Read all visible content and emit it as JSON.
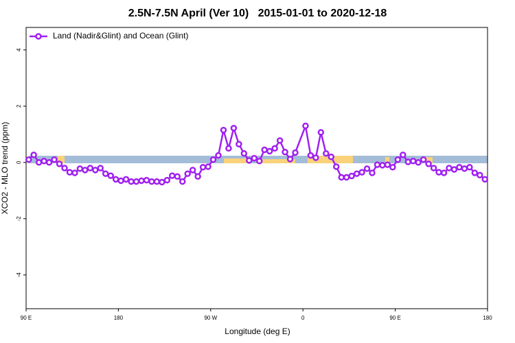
{
  "chart_data": {
    "type": "line",
    "title": "2.5N-7.5N April (Ver 10)   2015-01-01 to 2020-12-18",
    "xlabel": "Longitude (deg E)",
    "ylabel": "XCO2 - MLO trend (ppm)",
    "xlim": [
      90,
      540
    ],
    "ylim": [
      -5.2,
      4.8
    ],
    "xticks": [
      {
        "value": 90,
        "label": "90 E"
      },
      180,
      {
        "value": 270,
        "label": "90 W"
      },
      {
        "value": 360,
        "label": "0"
      },
      {
        "value": 450,
        "label": "90 E"
      },
      {
        "value": 540,
        "label": "180"
      }
    ],
    "yticks": [
      -4,
      -2,
      0,
      2,
      4
    ],
    "legend": "top-left",
    "x": [
      92.5,
      97.5,
      102.5,
      107.5,
      112.5,
      117.5,
      122.5,
      127.5,
      132.5,
      137.5,
      142.5,
      147.5,
      152.5,
      157.5,
      162.5,
      167.5,
      172.5,
      177.5,
      182.5,
      187.5,
      192.5,
      197.5,
      202.5,
      207.5,
      212.5,
      217.5,
      222.5,
      227.5,
      232.5,
      237.5,
      242.5,
      247.5,
      252.5,
      257.5,
      262.5,
      267.5,
      272.5,
      277.5,
      282.5,
      287.5,
      292.5,
      297.5,
      302.5,
      307.5,
      312.5,
      317.5,
      322.5,
      327.5,
      332.5,
      337.5,
      342.5,
      347.5,
      352.5,
      362.5,
      367.5,
      372.5,
      377.5,
      382.5,
      387.5,
      392.5,
      397.5,
      402.5,
      407.5,
      412.5,
      417.5,
      422.5,
      427.5,
      432.5,
      437.5,
      442.5,
      447.5,
      452.5,
      457.5,
      462.5,
      467.5,
      472.5,
      477.5,
      482.5,
      487.5,
      492.5,
      497.5,
      502.5,
      507.5,
      512.5,
      517.5,
      522.5,
      527.5,
      532.5,
      537.5
    ],
    "series": [
      {
        "name": "Land (Nadir&Glint) and Ocean (Glint)",
        "color": "#a020f0",
        "values": [
          0.1,
          0.27,
          0,
          0.05,
          0,
          0.1,
          -0.05,
          -0.2,
          -0.35,
          -0.37,
          -0.22,
          -0.27,
          -0.2,
          -0.27,
          -0.2,
          -0.4,
          -0.47,
          -0.6,
          -0.65,
          -0.6,
          -0.68,
          -0.68,
          -0.65,
          -0.63,
          -0.68,
          -0.68,
          -0.7,
          -0.63,
          -0.47,
          -0.5,
          -0.68,
          -0.4,
          -0.27,
          -0.5,
          -0.17,
          -0.15,
          0.1,
          0.25,
          1.15,
          0.5,
          1.22,
          0.65,
          0.32,
          0.07,
          0.15,
          0.05,
          0.45,
          0.4,
          0.5,
          0.78,
          0.37,
          0.12,
          0.35,
          1.3,
          0.25,
          0.17,
          1.07,
          0.32,
          0.2,
          -0.15,
          -0.53,
          -0.53,
          -0.48,
          -0.4,
          -0.35,
          -0.22,
          -0.37,
          -0.08,
          -0.1,
          -0.08,
          -0.17,
          0.1,
          0.27,
          0.02,
          0.05,
          0,
          0.1,
          -0.05,
          -0.2,
          -0.35,
          -0.37,
          -0.2,
          -0.25,
          -0.17,
          -0.22,
          -0.17,
          -0.37,
          -0.45,
          -0.6
        ]
      }
    ]
  }
}
